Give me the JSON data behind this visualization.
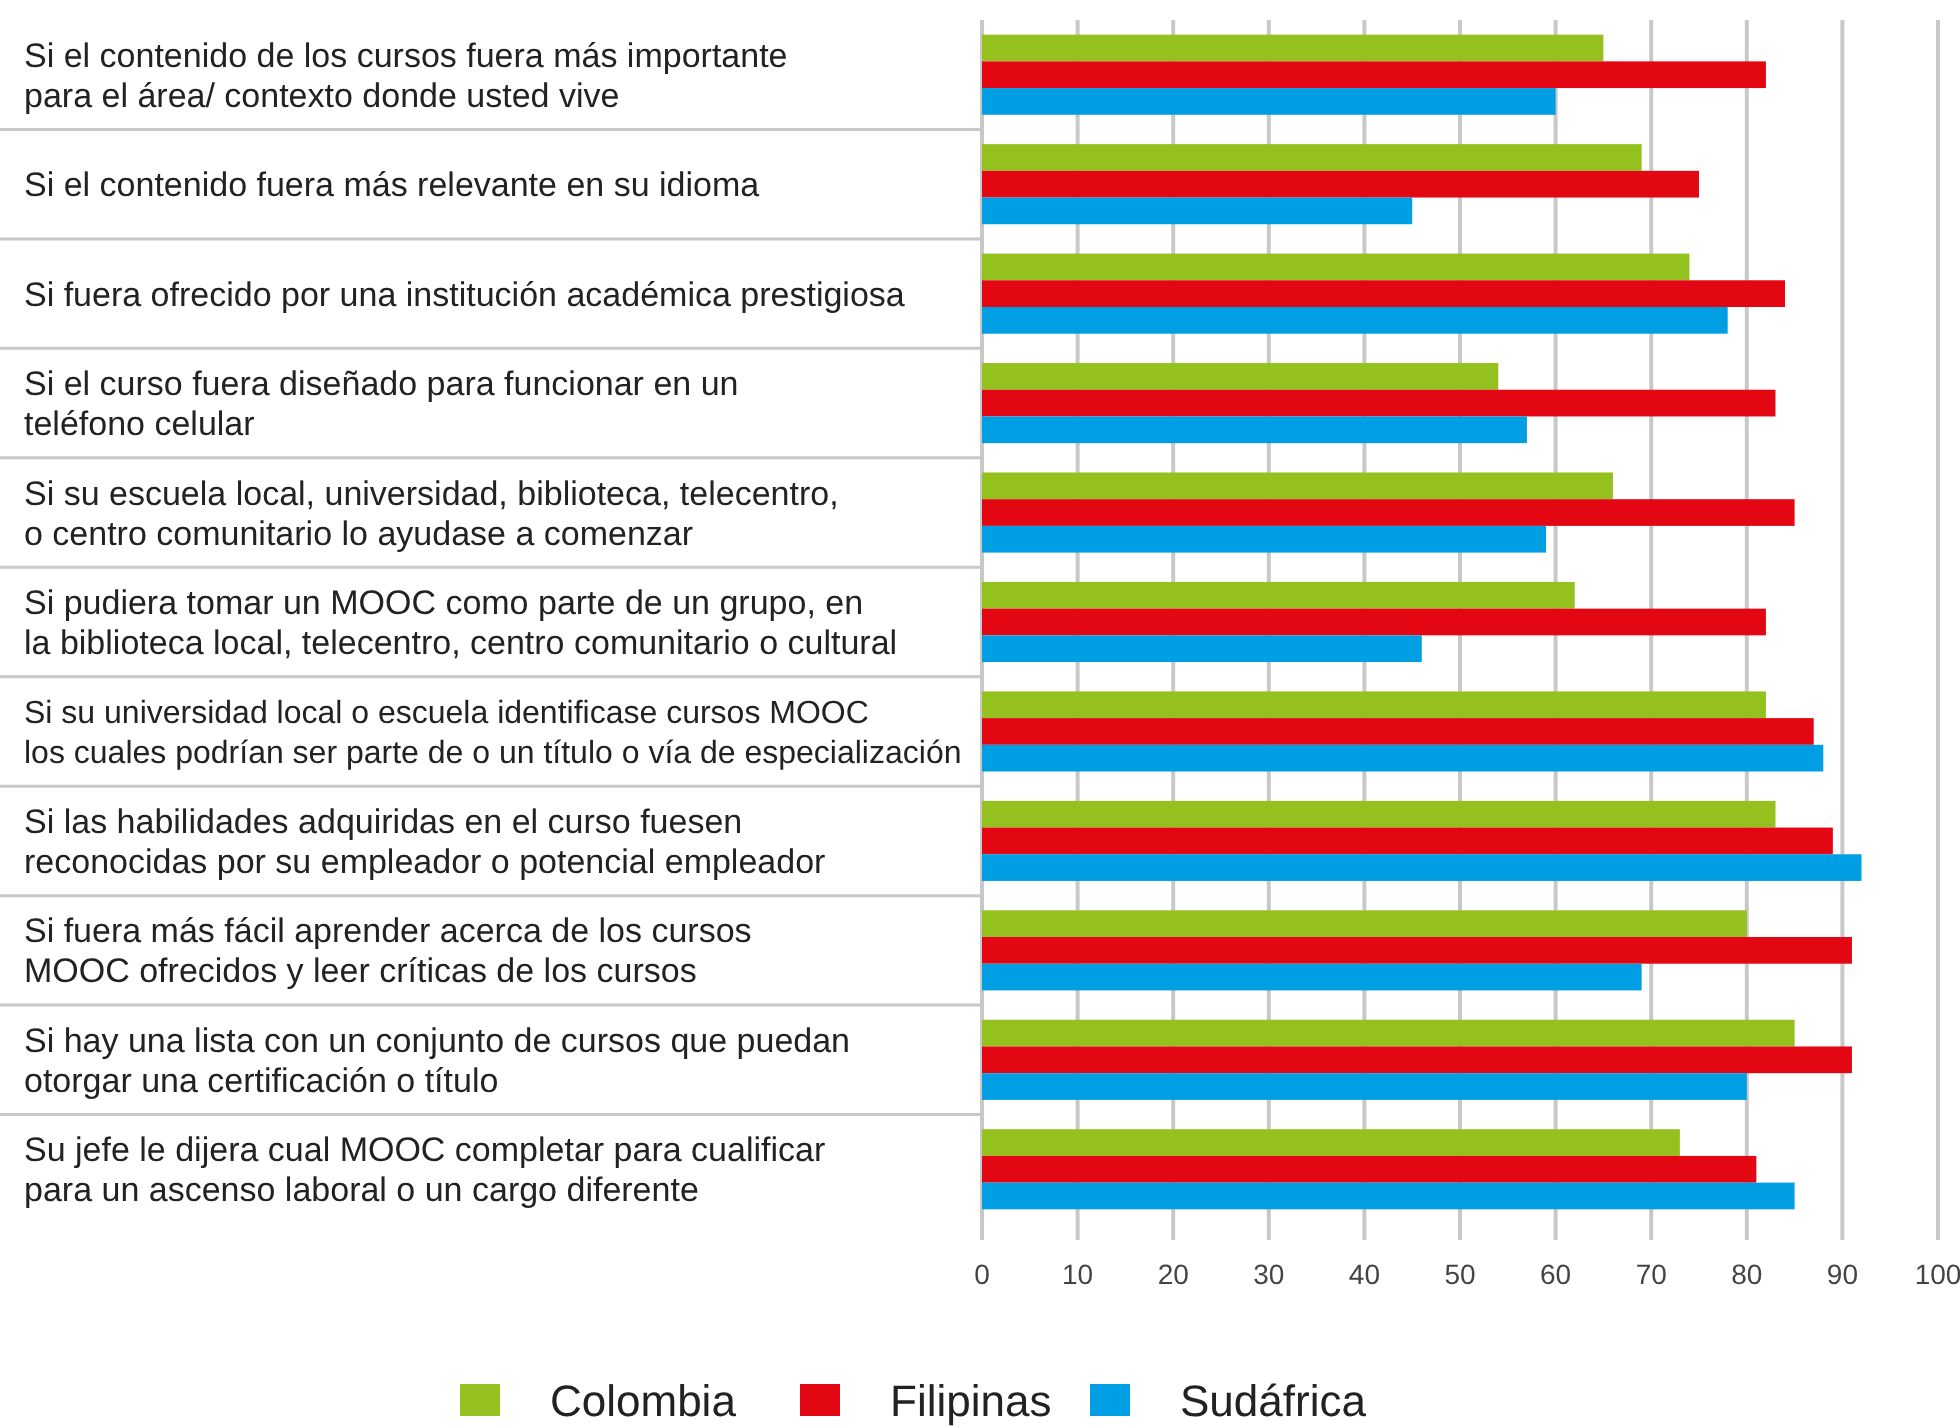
{
  "chart_data": {
    "type": "bar",
    "orientation": "horizontal",
    "categories": [
      "Si el contenido  de los cursos fuera más importante\npara el área/ contexto donde usted vive",
      "Si el contenido fuera más relevante en su idioma",
      "Si fuera ofrecido por una institución académica prestigiosa",
      "Si el curso fuera diseñado para funcionar en un\nteléfono celular",
      "Si su escuela local, universidad, biblioteca, telecentro,\no centro comunitario lo ayudase a comenzar",
      "Si pudiera tomar un MOOC como parte de un grupo, en\nla biblioteca local, telecentro, centro  comunitario  o cultural",
      "Si  su universidad local o escuela identificase cursos MOOC\nlos cuales podrían ser parte de o un título o vía de especialización",
      "Si las habilidades adquiridas en el curso fuesen\nreconocidas por su empleador o potencial empleador",
      "Si fuera más fácil aprender acerca de los cursos\nMOOC ofrecidos y leer críticas de los cursos",
      "Si hay  una lista con un conjunto de cursos que puedan\notorgar una certificación o título",
      "Su jefe le dijera cual MOOC  completar  para cualificar\npara un ascenso laboral o un cargo diferente"
    ],
    "series": [
      {
        "name": "Colombia",
        "color": "#95c11f",
        "values": [
          65,
          69,
          74,
          54,
          66,
          62,
          82,
          83,
          80,
          85,
          73
        ]
      },
      {
        "name": "Filipinas",
        "color": "#e30613",
        "values": [
          82,
          75,
          84,
          83,
          85,
          82,
          87,
          89,
          91,
          91,
          81
        ]
      },
      {
        "name": "Sudáfrica",
        "color": "#009fe3",
        "values": [
          60,
          45,
          78,
          57,
          59,
          46,
          88,
          92,
          69,
          80,
          85
        ]
      }
    ],
    "xlim": [
      0,
      100
    ],
    "xticks": [
      0,
      10,
      20,
      30,
      40,
      50,
      60,
      70,
      80,
      90,
      100
    ],
    "grid": "x",
    "legend": "bottom"
  }
}
